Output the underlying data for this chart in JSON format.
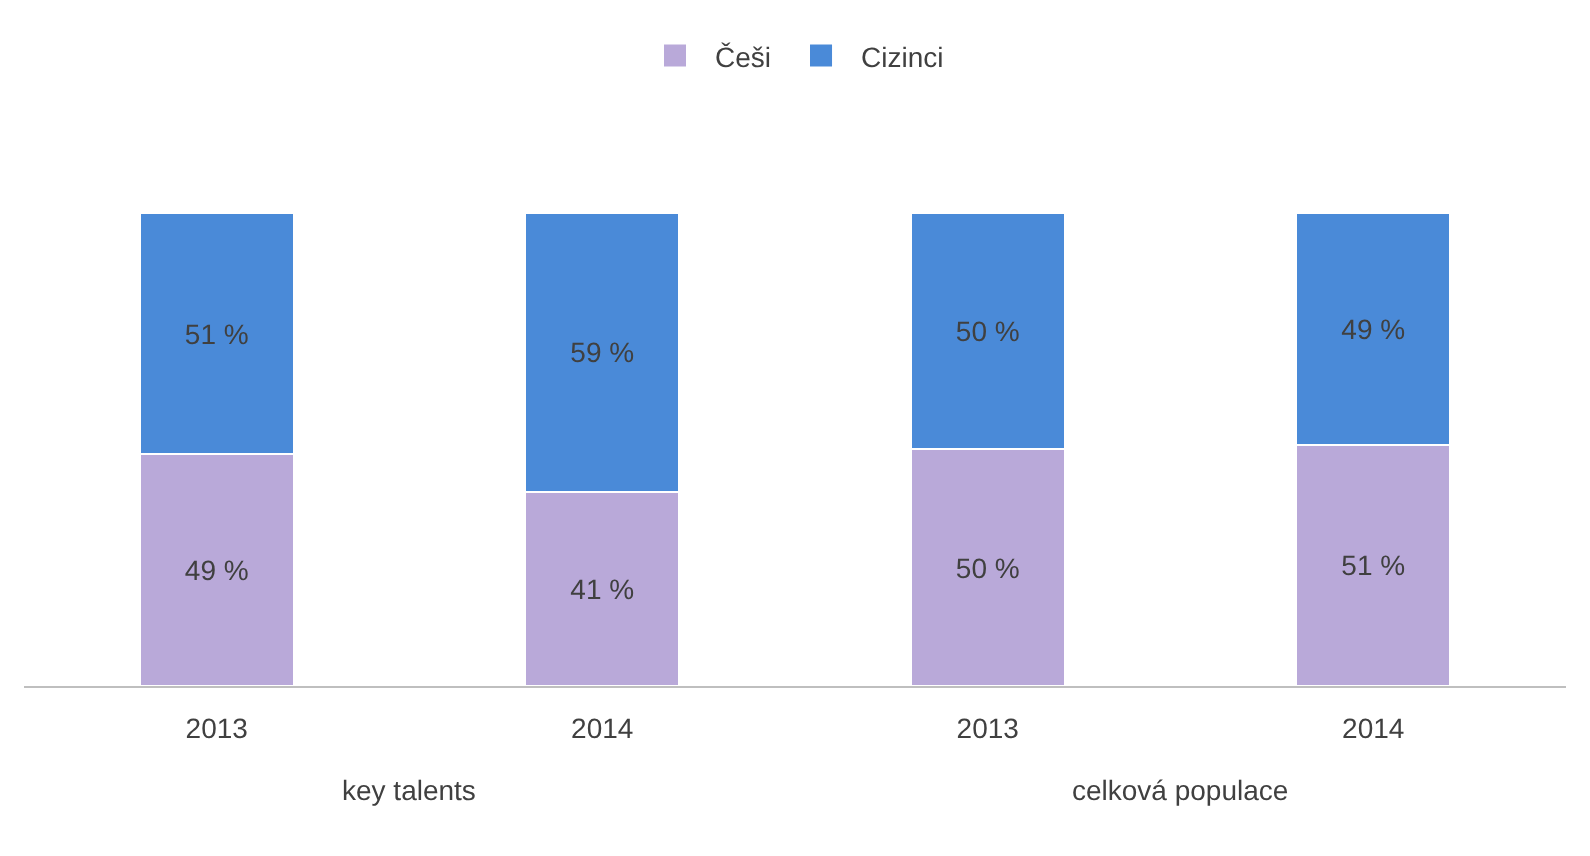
{
  "chart_data": {
    "type": "bar",
    "stacked": true,
    "categories": [
      "2013",
      "2014",
      "2013",
      "2014"
    ],
    "series": [
      {
        "name": "Češi",
        "color": "#b9a9d9",
        "values": [
          49,
          41,
          50,
          51
        ],
        "value_labels": [
          "49 %",
          "41 %",
          "50 %",
          "51 %"
        ]
      },
      {
        "name": "Cizinci",
        "color": "#4a8ad8",
        "values": [
          51,
          59,
          50,
          49
        ],
        "value_labels": [
          "51 %",
          "59 %",
          "50 %",
          "49 %"
        ]
      }
    ],
    "annotations": [
      "key talents",
      "celková populace"
    ],
    "legend": "top"
  }
}
